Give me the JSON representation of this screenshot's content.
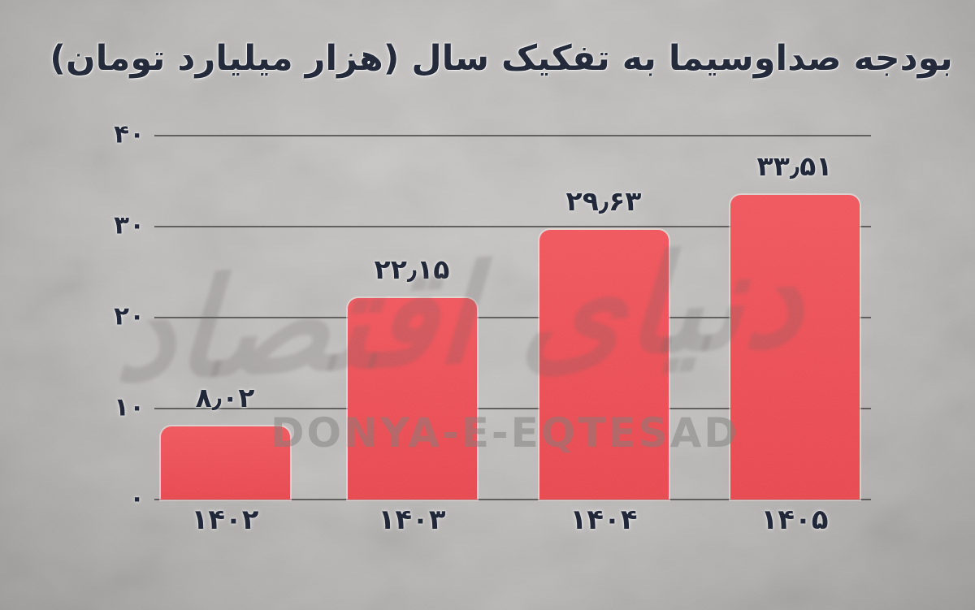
{
  "chart_data": {
    "type": "bar",
    "title": "بودجه صداوسیما به تفکیک سال (هزار میلیارد تومان)",
    "categories": [
      "۱۴۰۲",
      "۱۴۰۳",
      "۱۴۰۴",
      "۱۴۰۵"
    ],
    "categories_western": [
      1402,
      1403,
      1404,
      1405
    ],
    "values": [
      8.02,
      22.15,
      29.63,
      33.51
    ],
    "value_labels": [
      "۸٫۰۲",
      "۲۲٫۱۵",
      "۲۹٫۶۳",
      "۳۳٫۵۱"
    ],
    "y_ticks": [
      {
        "value": 0,
        "label": "۰"
      },
      {
        "value": 10,
        "label": "۱۰"
      },
      {
        "value": 20,
        "label": "۲۰"
      },
      {
        "value": 30,
        "label": "۳۰"
      },
      {
        "value": 40,
        "label": "۴۰"
      }
    ],
    "ylim": [
      0,
      40
    ],
    "xlabel": "",
    "ylabel": "",
    "grid": true,
    "legend": "none",
    "direction": "rtl",
    "bar_color": "#f2484f"
  },
  "watermark": {
    "latin": "DONYA-E-EQTESAD",
    "persian_calligraphy": "دنیای اقتصاد"
  },
  "colors": {
    "background": "#bcbab8",
    "text": "#1a2132",
    "gridline": "#3e3e3e",
    "bar": "#f2484f"
  }
}
